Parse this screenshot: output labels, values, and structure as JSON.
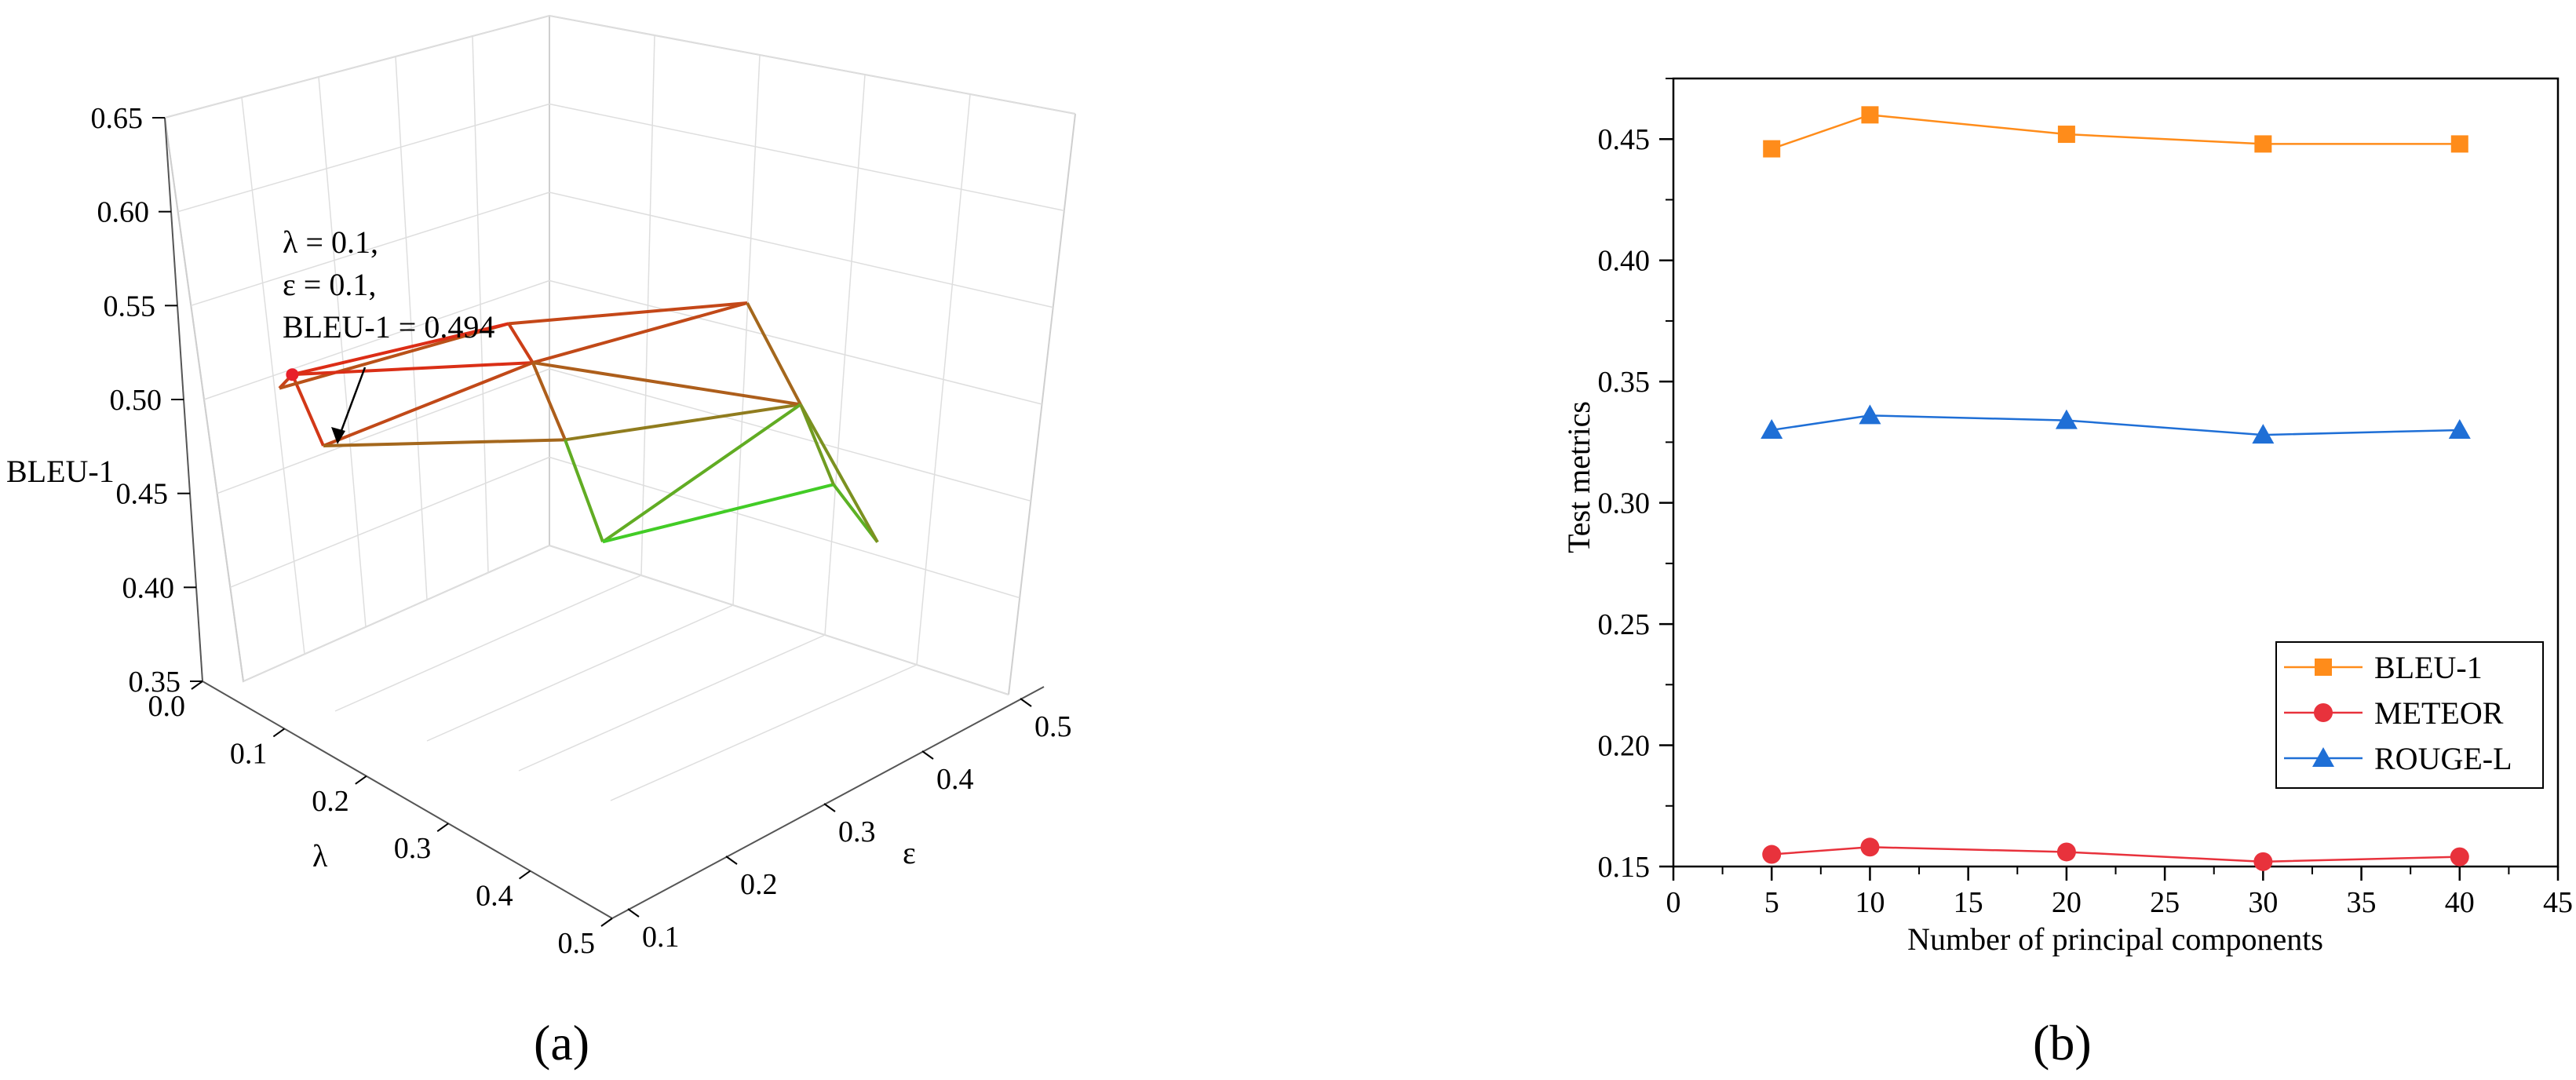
{
  "panel_a": {
    "caption": "(a)",
    "annotation": [
      "λ = 0.1,",
      "ε = 0.1,",
      "BLEU-1  = 0.494"
    ]
  },
  "panel_b": {
    "caption": "(b)"
  },
  "chart_data": [
    {
      "type": "surface3d",
      "zlabel": "BLEU-1",
      "xlabel": "λ",
      "ylabel": "ε",
      "zlim": [
        0.35,
        0.65
      ],
      "z_ticks": [
        "0.35",
        "0.40",
        "0.45",
        "0.50",
        "0.55",
        "0.60",
        "0.65"
      ],
      "x_ticks": [
        "0.0",
        "0.1",
        "0.2",
        "0.3",
        "0.4",
        "0.5"
      ],
      "y_ticks": [
        "0.1",
        "0.2",
        "0.3",
        "0.4",
        "0.5"
      ],
      "grid": true,
      "colormap": "red-to-green",
      "highlight_point": {
        "lambda": 0.1,
        "epsilon": 0.1,
        "value": 0.494
      },
      "points": [
        {
          "lambda": 0.0,
          "epsilon": 0.1,
          "value": 0.46
        },
        {
          "lambda": 0.1,
          "epsilon": 0.1,
          "value": 0.494
        },
        {
          "lambda": 0.2,
          "epsilon": 0.1,
          "value": 0.47
        },
        {
          "lambda": 0.0,
          "epsilon": 0.3,
          "value": 0.48
        },
        {
          "lambda": 0.1,
          "epsilon": 0.3,
          "value": 0.478
        },
        {
          "lambda": 0.2,
          "epsilon": 0.3,
          "value": 0.45
        },
        {
          "lambda": 0.3,
          "epsilon": 0.3,
          "value": 0.405
        },
        {
          "lambda": 0.0,
          "epsilon": 0.5,
          "value": 0.47
        },
        {
          "lambda": 0.2,
          "epsilon": 0.5,
          "value": 0.45
        },
        {
          "lambda": 0.3,
          "epsilon": 0.5,
          "value": 0.42
        },
        {
          "lambda": 0.5,
          "epsilon": 0.5,
          "value": 0.43
        }
      ]
    },
    {
      "type": "line",
      "xlabel": "Number of principal components",
      "ylabel": "Test metrics",
      "xlim": [
        0,
        45
      ],
      "ylim": [
        0.15,
        0.475
      ],
      "x_ticks": [
        0,
        5,
        10,
        15,
        20,
        25,
        30,
        35,
        40,
        45
      ],
      "y_ticks": [
        "0.15",
        "0.20",
        "0.25",
        "0.30",
        "0.35",
        "0.40",
        "0.45"
      ],
      "legend_position": "bottom-right",
      "x": [
        5,
        10,
        20,
        30,
        40
      ],
      "series": [
        {
          "name": "BLEU-1",
          "marker": "square",
          "color": "#ff8c1a",
          "values": [
            0.446,
            0.46,
            0.452,
            0.448,
            0.448
          ]
        },
        {
          "name": "METEOR",
          "marker": "circle",
          "color": "#e8323c",
          "values": [
            0.155,
            0.158,
            0.156,
            0.152,
            0.154
          ]
        },
        {
          "name": "ROUGE-L",
          "marker": "triangle",
          "color": "#1f6fd6",
          "values": [
            0.33,
            0.336,
            0.334,
            0.328,
            0.33
          ]
        }
      ]
    }
  ]
}
